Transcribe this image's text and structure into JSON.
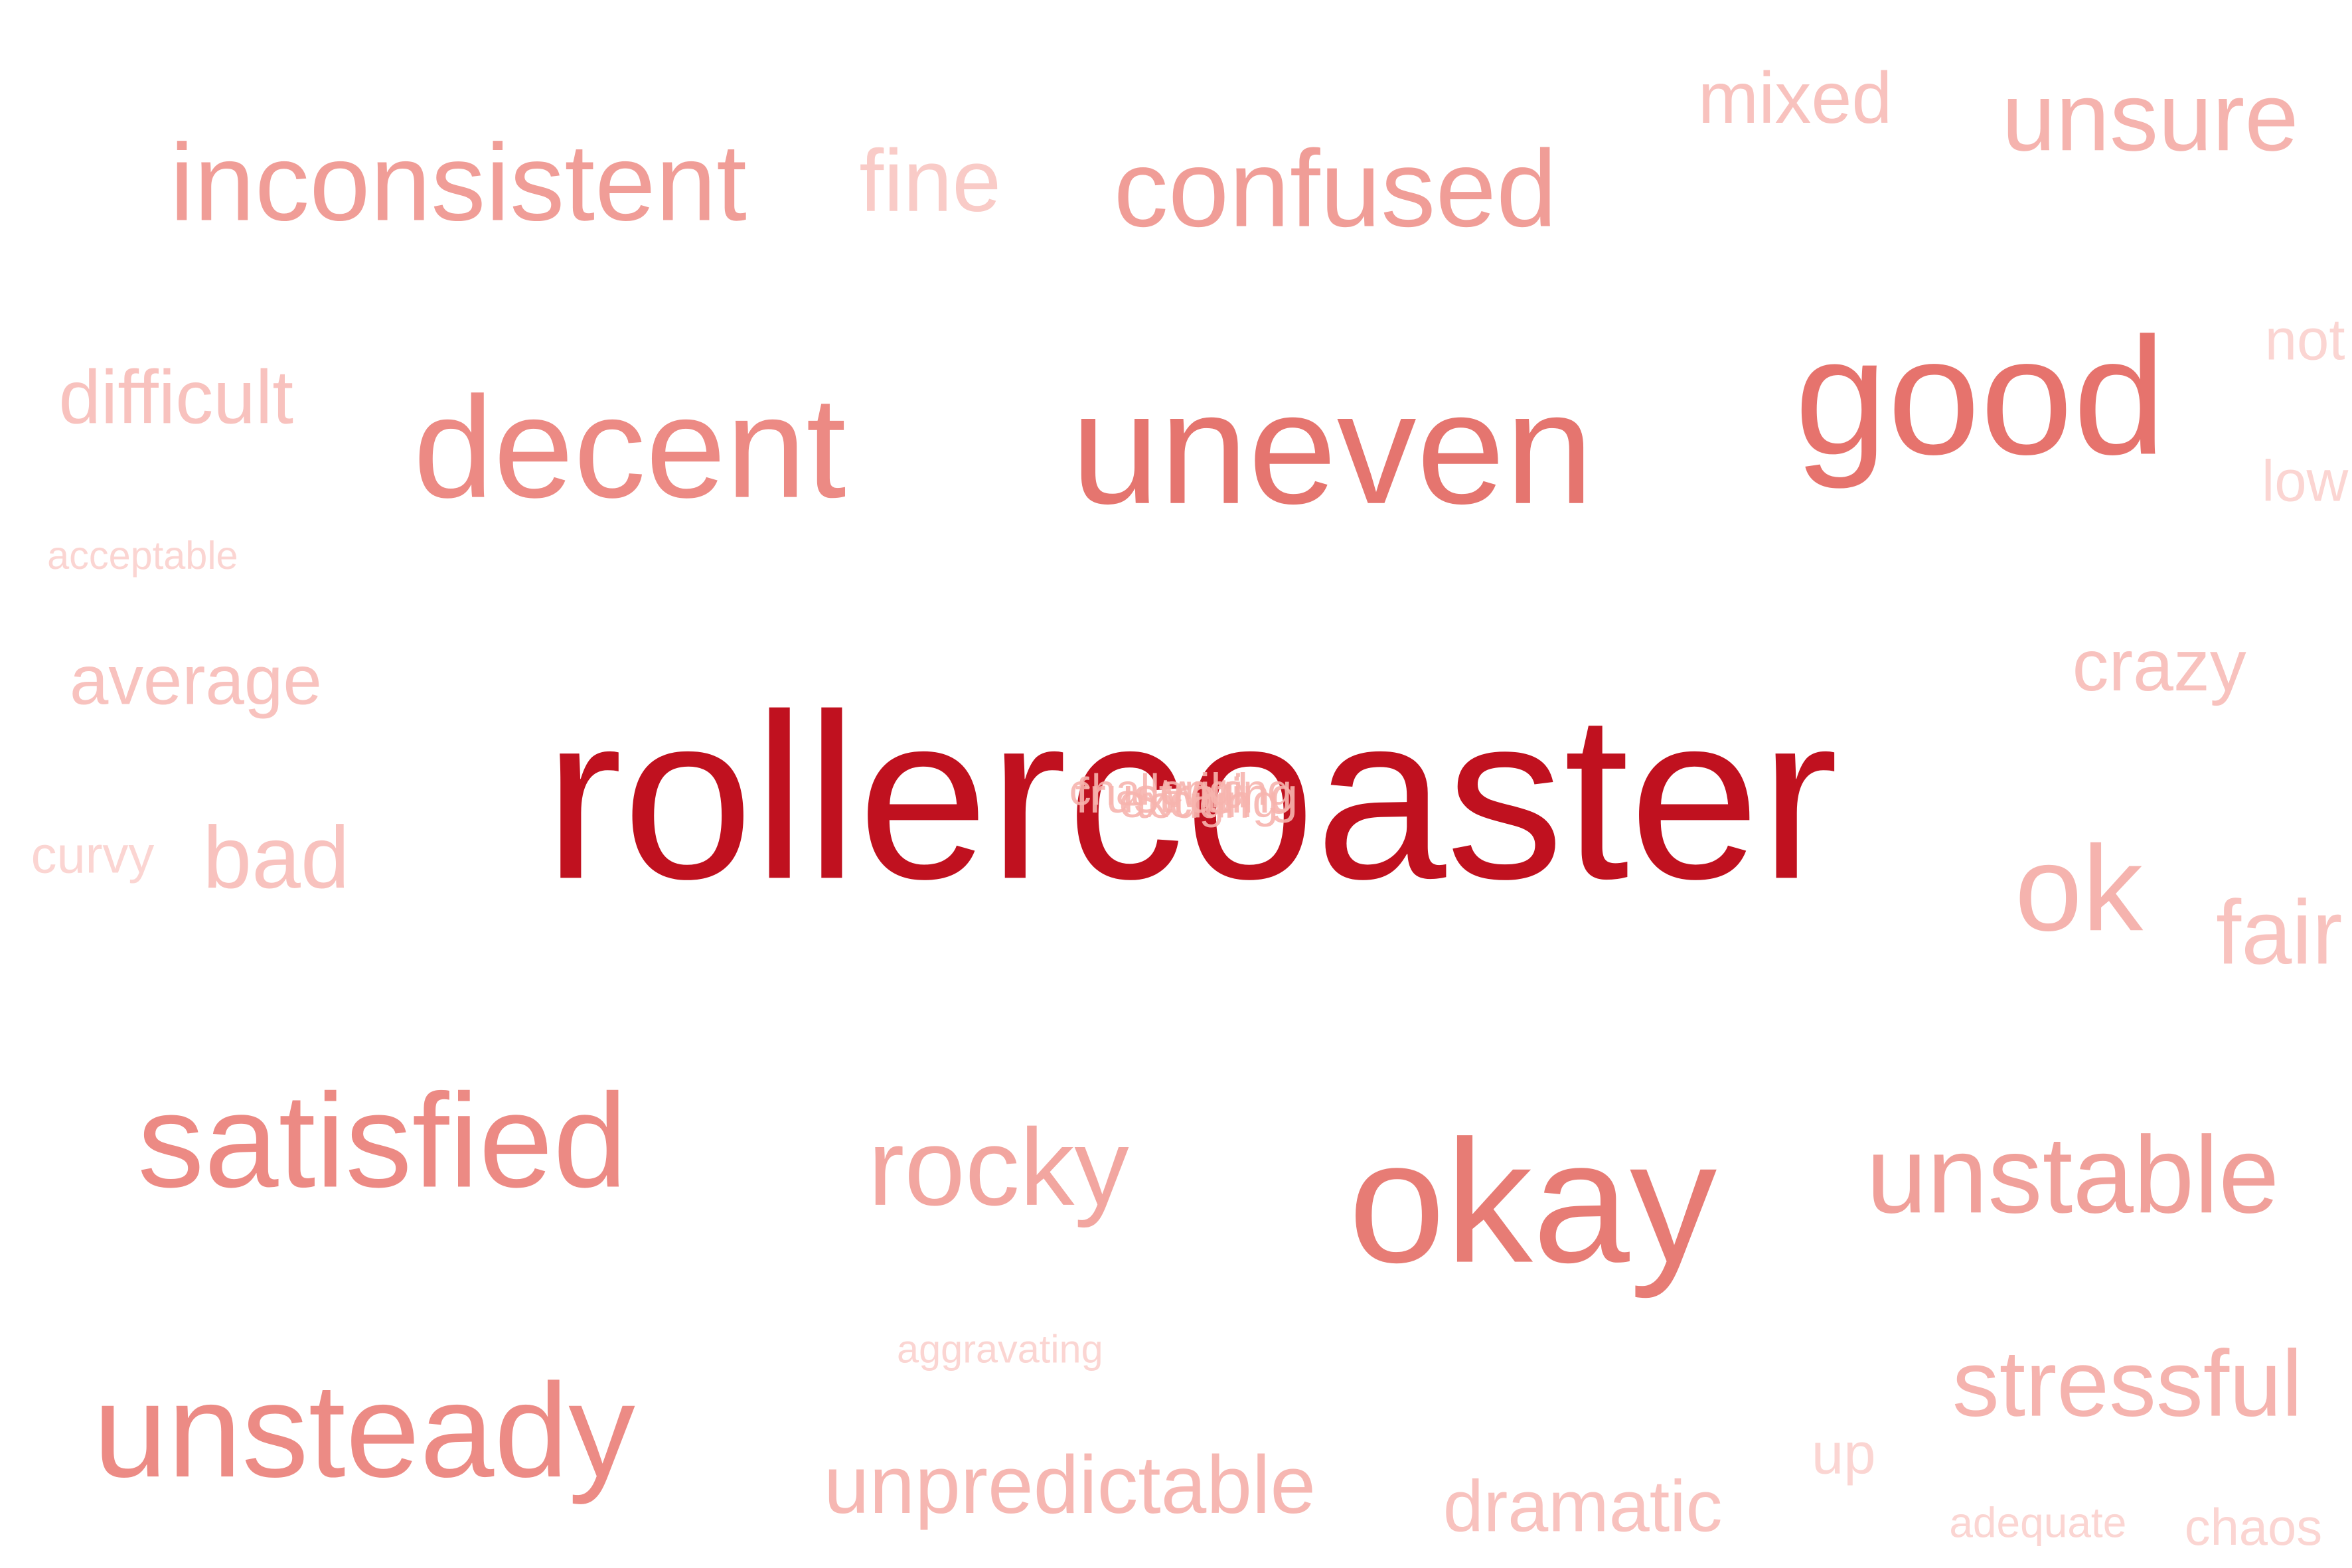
{
  "cloud": {
    "words": [
      {
        "text": "rollercoaster",
        "color": "#c0111f"
      },
      {
        "text": "good",
        "color": "#e6736d"
      },
      {
        "text": "uneven",
        "color": "#e5756f"
      },
      {
        "text": "okay",
        "color": "#e77c75"
      },
      {
        "text": "decent",
        "color": "#ec8a84"
      },
      {
        "text": "satisfied",
        "color": "#ec8a84"
      },
      {
        "text": "unsteady",
        "color": "#ec8b85"
      },
      {
        "text": "inconsistent",
        "color": "#f09d97"
      },
      {
        "text": "confused",
        "color": "#f09d97"
      },
      {
        "text": "unstable",
        "color": "#f0a09a"
      },
      {
        "text": "rocky",
        "color": "#f2a6a0"
      },
      {
        "text": "unsure",
        "color": "#f5b3ae"
      },
      {
        "text": "ok",
        "color": "#f5b3ae"
      },
      {
        "text": "stressful",
        "color": "#f5b3ae"
      },
      {
        "text": "unpredictable",
        "color": "#f6b7b2"
      },
      {
        "text": "difficult",
        "color": "#f8c2be"
      },
      {
        "text": "mixed",
        "color": "#f8c2be"
      },
      {
        "text": "average",
        "color": "#f8c2be"
      },
      {
        "text": "crazy",
        "color": "#f8c2be"
      },
      {
        "text": "bad",
        "color": "#f8c2be"
      },
      {
        "text": "fair",
        "color": "#f8c2be"
      },
      {
        "text": "dramatic",
        "color": "#f8c2be"
      },
      {
        "text": "fine",
        "color": "#f9cbc7"
      },
      {
        "text": "not",
        "color": "#fbd5d2"
      },
      {
        "text": "low",
        "color": "#fbd5d2"
      },
      {
        "text": "up",
        "color": "#fbd5d2"
      },
      {
        "text": "chaos",
        "color": "#fbd5d2"
      },
      {
        "text": "curvy",
        "color": "#fbd5d2"
      },
      {
        "text": "acceptable",
        "color": "#fbd5d2"
      },
      {
        "text": "aggravating",
        "color": "#fbd5d2"
      },
      {
        "text": "adequate",
        "color": "#fbd5d2"
      }
    ],
    "overlap": {
      "color": "#f7b4ae",
      "words": [
        "frustrating",
        "exciting",
        "challenging",
        "wild",
        "tough"
      ]
    }
  }
}
